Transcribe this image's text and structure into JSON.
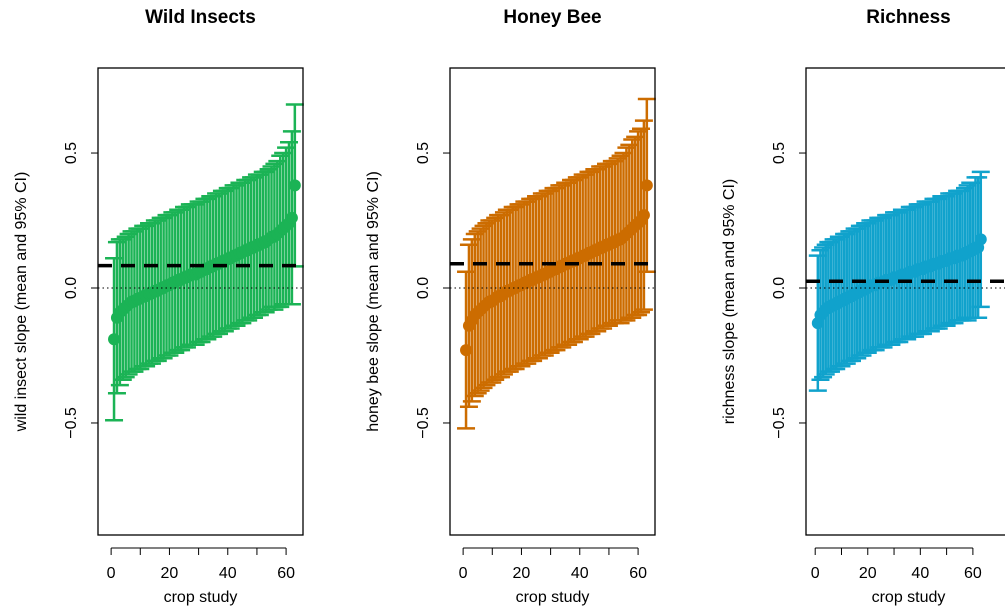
{
  "chart_data": [
    {
      "type": "errorbar",
      "title": "Wild Insects",
      "x_label": "crop study",
      "y_label": "wild insect slope (mean and 95% CI)",
      "color": "#1bb355",
      "x": [
        1,
        2,
        3,
        4,
        5,
        6,
        7,
        8,
        9,
        10,
        11,
        12,
        13,
        14,
        15,
        16,
        17,
        18,
        19,
        20,
        21,
        22,
        23,
        24,
        25,
        26,
        27,
        28,
        29,
        30,
        31,
        32,
        33,
        34,
        35,
        36,
        37,
        38,
        39,
        40,
        41,
        42,
        43,
        44,
        45,
        46,
        47,
        48,
        49,
        50,
        51,
        52,
        53,
        54,
        55,
        56,
        57,
        58,
        59,
        60,
        61,
        62,
        63
      ],
      "values": [
        -0.19,
        -0.11,
        -0.09,
        -0.08,
        -0.07,
        -0.06,
        -0.05,
        -0.05,
        -0.04,
        -0.04,
        -0.03,
        -0.03,
        -0.02,
        -0.02,
        -0.01,
        -0.01,
        0.0,
        0.0,
        0.01,
        0.01,
        0.02,
        0.02,
        0.03,
        0.03,
        0.04,
        0.04,
        0.05,
        0.05,
        0.05,
        0.06,
        0.06,
        0.07,
        0.07,
        0.08,
        0.08,
        0.09,
        0.09,
        0.1,
        0.1,
        0.11,
        0.11,
        0.12,
        0.12,
        0.13,
        0.13,
        0.14,
        0.14,
        0.15,
        0.15,
        0.16,
        0.16,
        0.17,
        0.17,
        0.18,
        0.19,
        0.19,
        0.2,
        0.21,
        0.22,
        0.23,
        0.24,
        0.26,
        0.38
      ],
      "errors": [
        0.3,
        0.28,
        0.27,
        0.26,
        0.26,
        0.26,
        0.26,
        0.26,
        0.26,
        0.26,
        0.26,
        0.26,
        0.26,
        0.26,
        0.26,
        0.26,
        0.26,
        0.26,
        0.26,
        0.26,
        0.26,
        0.26,
        0.26,
        0.26,
        0.26,
        0.26,
        0.26,
        0.26,
        0.26,
        0.26,
        0.26,
        0.26,
        0.26,
        0.26,
        0.26,
        0.26,
        0.26,
        0.26,
        0.26,
        0.26,
        0.26,
        0.26,
        0.26,
        0.26,
        0.26,
        0.26,
        0.26,
        0.26,
        0.26,
        0.26,
        0.26,
        0.26,
        0.26,
        0.26,
        0.26,
        0.27,
        0.27,
        0.28,
        0.28,
        0.29,
        0.3,
        0.32,
        0.3
      ],
      "mean_line": 0.083,
      "reference_line": 0,
      "xlim": [
        -4.5,
        65.8
      ],
      "ylim": [
        -0.915,
        0.815
      ],
      "xticks": [
        0,
        20,
        40,
        60
      ],
      "xminor_ticks": [
        10,
        30,
        50
      ],
      "yticks": [
        {
          "value": -0.5,
          "label": "−0.5"
        },
        {
          "value": 0,
          "label": "0.0"
        },
        {
          "value": 0.5,
          "label": "0.5"
        }
      ]
    },
    {
      "type": "errorbar",
      "title": "Honey Bee",
      "x_label": "crop study",
      "y_label": "honey bee slope (mean and 95% CI)",
      "color": "#cc6c00",
      "x": [
        1,
        2,
        3,
        4,
        5,
        6,
        7,
        8,
        9,
        10,
        11,
        12,
        13,
        14,
        15,
        16,
        17,
        18,
        19,
        20,
        21,
        22,
        23,
        24,
        25,
        26,
        27,
        28,
        29,
        30,
        31,
        32,
        33,
        34,
        35,
        36,
        37,
        38,
        39,
        40,
        41,
        42,
        43,
        44,
        45,
        46,
        47,
        48,
        49,
        50,
        51,
        52,
        53,
        54,
        55,
        56,
        57,
        58,
        59,
        60,
        61,
        62,
        63
      ],
      "values": [
        -0.23,
        -0.14,
        -0.12,
        -0.1,
        -0.09,
        -0.08,
        -0.07,
        -0.06,
        -0.05,
        -0.05,
        -0.04,
        -0.03,
        -0.03,
        -0.02,
        -0.01,
        -0.01,
        0.0,
        0.0,
        0.01,
        0.01,
        0.02,
        0.02,
        0.03,
        0.03,
        0.04,
        0.04,
        0.05,
        0.05,
        0.06,
        0.06,
        0.07,
        0.07,
        0.08,
        0.08,
        0.09,
        0.09,
        0.1,
        0.1,
        0.11,
        0.11,
        0.12,
        0.12,
        0.13,
        0.13,
        0.14,
        0.14,
        0.15,
        0.15,
        0.16,
        0.16,
        0.17,
        0.17,
        0.18,
        0.18,
        0.19,
        0.2,
        0.21,
        0.22,
        0.23,
        0.24,
        0.25,
        0.27,
        0.38
      ],
      "errors": [
        0.29,
        0.3,
        0.3,
        0.3,
        0.3,
        0.3,
        0.3,
        0.3,
        0.3,
        0.3,
        0.3,
        0.3,
        0.3,
        0.3,
        0.3,
        0.3,
        0.3,
        0.3,
        0.3,
        0.3,
        0.3,
        0.3,
        0.3,
        0.3,
        0.3,
        0.3,
        0.3,
        0.3,
        0.3,
        0.3,
        0.3,
        0.3,
        0.3,
        0.3,
        0.3,
        0.3,
        0.3,
        0.3,
        0.3,
        0.3,
        0.3,
        0.3,
        0.3,
        0.3,
        0.3,
        0.3,
        0.3,
        0.3,
        0.3,
        0.3,
        0.3,
        0.3,
        0.3,
        0.31,
        0.31,
        0.32,
        0.32,
        0.33,
        0.33,
        0.34,
        0.34,
        0.35,
        0.32
      ],
      "mean_line": 0.09,
      "reference_line": 0,
      "xlim": [
        -4.5,
        65.8
      ],
      "ylim": [
        -0.915,
        0.815
      ],
      "xticks": [
        0,
        20,
        40,
        60
      ],
      "xminor_ticks": [
        10,
        30,
        50
      ],
      "yticks": [
        {
          "value": -0.5,
          "label": "−0.5"
        },
        {
          "value": 0,
          "label": "0.0"
        },
        {
          "value": 0.5,
          "label": "0.5"
        }
      ]
    },
    {
      "type": "errorbar",
      "title": "Richness",
      "x_label": "crop study",
      "y_label": "richness slope (mean and 95% CI)",
      "color": "#10a2cc",
      "x": [
        1,
        2,
        3,
        4,
        5,
        6,
        7,
        8,
        9,
        10,
        11,
        12,
        13,
        14,
        15,
        16,
        17,
        18,
        19,
        20,
        21,
        22,
        23,
        24,
        25,
        26,
        27,
        28,
        29,
        30,
        31,
        32,
        33,
        34,
        35,
        36,
        37,
        38,
        39,
        40,
        41,
        42,
        43,
        44,
        45,
        46,
        47,
        48,
        49,
        50,
        51,
        52,
        53,
        54,
        55,
        56,
        57,
        58,
        59,
        60,
        61,
        62,
        63
      ],
      "values": [
        -0.13,
        -0.1,
        -0.09,
        -0.08,
        -0.07,
        -0.07,
        -0.06,
        -0.06,
        -0.05,
        -0.05,
        -0.04,
        -0.04,
        -0.03,
        -0.03,
        -0.02,
        -0.02,
        -0.01,
        -0.01,
        0.0,
        0.0,
        0.01,
        0.01,
        0.01,
        0.02,
        0.02,
        0.02,
        0.03,
        0.03,
        0.03,
        0.04,
        0.04,
        0.04,
        0.05,
        0.05,
        0.05,
        0.06,
        0.06,
        0.06,
        0.07,
        0.07,
        0.07,
        0.08,
        0.08,
        0.08,
        0.09,
        0.09,
        0.09,
        0.1,
        0.1,
        0.1,
        0.11,
        0.11,
        0.11,
        0.12,
        0.12,
        0.12,
        0.13,
        0.13,
        0.14,
        0.14,
        0.15,
        0.15,
        0.18
      ],
      "errors": [
        0.25,
        0.24,
        0.24,
        0.24,
        0.24,
        0.24,
        0.24,
        0.24,
        0.24,
        0.24,
        0.24,
        0.24,
        0.24,
        0.24,
        0.24,
        0.24,
        0.24,
        0.24,
        0.24,
        0.24,
        0.24,
        0.24,
        0.24,
        0.24,
        0.24,
        0.24,
        0.24,
        0.24,
        0.24,
        0.24,
        0.24,
        0.24,
        0.24,
        0.24,
        0.24,
        0.24,
        0.24,
        0.24,
        0.24,
        0.24,
        0.24,
        0.24,
        0.24,
        0.24,
        0.24,
        0.24,
        0.24,
        0.24,
        0.24,
        0.24,
        0.24,
        0.24,
        0.24,
        0.24,
        0.24,
        0.24,
        0.24,
        0.25,
        0.25,
        0.25,
        0.26,
        0.26,
        0.25
      ],
      "mean_line": 0.025,
      "reference_line": 0,
      "xlim": [
        -3.5,
        74.5
      ],
      "ylim": [
        -0.915,
        0.815
      ],
      "xticks": [
        0,
        20,
        40,
        60
      ],
      "xminor_ticks": [
        10,
        30,
        50
      ],
      "yticks": [
        {
          "value": -0.5,
          "label": "−0.5"
        },
        {
          "value": 0,
          "label": "0.0"
        },
        {
          "value": 0.5,
          "label": "0.5"
        }
      ]
    }
  ]
}
